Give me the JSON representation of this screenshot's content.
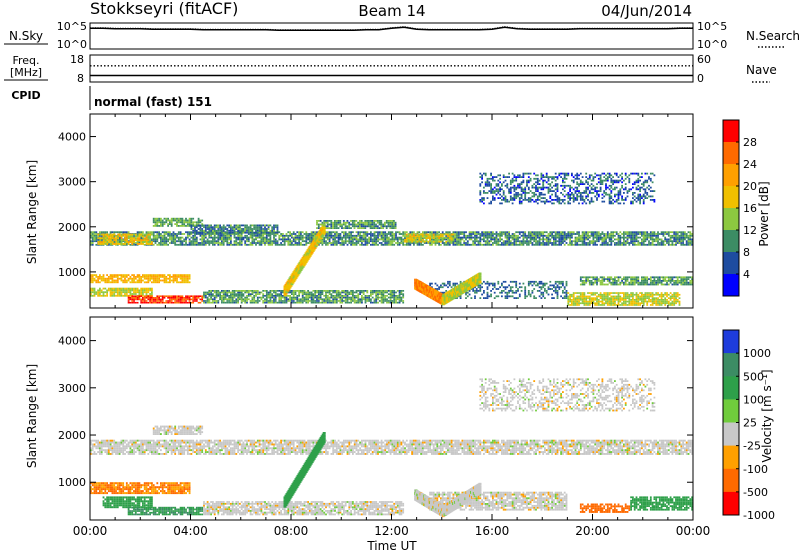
{
  "chart_data": [
    {
      "type": "line",
      "panel": "noise",
      "title": "Stokkseyri (fitACF)",
      "beam_label": "Beam 14",
      "date_label": "04/Jun/2014",
      "left_label": "N.Sky",
      "right_label": "N.Search",
      "left_ticks": [
        "10^5",
        "10^0"
      ],
      "right_ticks": [
        "10^5",
        "10^0"
      ],
      "x": [
        0,
        0.5,
        1,
        1.5,
        2,
        2.5,
        3,
        3.5,
        4,
        4.5,
        5,
        5.5,
        6,
        6.5,
        7,
        7.5,
        8,
        8.5,
        9,
        9.5,
        10,
        10.5,
        11,
        11.5,
        12,
        12.5,
        13,
        13.5,
        14,
        14.5,
        15,
        15.5,
        16,
        16.5,
        17,
        17.5,
        18,
        18.5,
        19,
        19.5,
        20,
        20.5,
        21,
        21.5,
        22,
        22.5,
        23,
        23.5,
        24
      ],
      "sky_log10": [
        4.0,
        4.0,
        3.9,
        3.9,
        3.9,
        3.8,
        3.8,
        3.8,
        3.8,
        3.7,
        3.7,
        3.7,
        3.7,
        3.7,
        3.7,
        3.6,
        3.6,
        3.6,
        3.6,
        3.6,
        3.6,
        3.6,
        3.7,
        3.7,
        4.0,
        4.2,
        3.8,
        3.7,
        3.7,
        3.7,
        3.7,
        3.7,
        3.8,
        4.2,
        3.9,
        3.8,
        3.8,
        3.8,
        3.8,
        3.9,
        3.9,
        3.9,
        3.9,
        3.9,
        3.9,
        3.9,
        3.9,
        4.0,
        4.0
      ],
      "search_log10": [
        4.1,
        4.1,
        4.0,
        4.0,
        4.0,
        3.9,
        3.9,
        3.9,
        3.9,
        3.8,
        3.8,
        3.8,
        3.8,
        3.8,
        3.8,
        3.7,
        3.7,
        3.7,
        3.7,
        3.7,
        3.7,
        3.7,
        3.8,
        3.8,
        4.1,
        4.3,
        3.9,
        3.8,
        3.8,
        3.8,
        3.8,
        3.8,
        3.9,
        4.3,
        4.0,
        3.9,
        3.9,
        3.9,
        3.9,
        4.0,
        4.0,
        4.0,
        4.0,
        4.0,
        4.0,
        4.0,
        4.0,
        4.1,
        4.1
      ]
    },
    {
      "type": "line",
      "panel": "frequency",
      "left_label_1": "Freq.",
      "left_label_2": "[MHz]",
      "left_ticks": [
        "18",
        "8"
      ],
      "right_label": "Nave",
      "right_ticks": [
        "60",
        "0"
      ],
      "x": [
        0,
        24
      ],
      "freq_mhz": [
        10.4,
        10.4
      ],
      "nave": [
        36,
        36
      ]
    },
    {
      "type": "table",
      "panel": "cpid",
      "label": "CPID",
      "mode": "normal (fast) 151"
    },
    {
      "type": "heatmap",
      "panel": "power",
      "ylabel": "Slant Range [km]",
      "xlim": [
        0,
        24
      ],
      "ylim": [
        200,
        4500
      ],
      "yticks": [
        1000,
        2000,
        3000,
        4000
      ],
      "colorbar_label": "Power [dB]",
      "colorbar_ticks": [
        28,
        24,
        20,
        16,
        12,
        8,
        4
      ],
      "colorbar_colors": [
        "#ff0000",
        "#ff6a00",
        "#ffa000",
        "#f0c000",
        "#8cc840",
        "#3c8c64",
        "#1e4ca0",
        "#0000ff"
      ],
      "bands": [
        {
          "t": [
            0,
            24
          ],
          "r": [
            1580,
            1900
          ],
          "value": 8
        },
        {
          "t": [
            0.3,
            2.5
          ],
          "r": [
            1600,
            1850
          ],
          "value": 16
        },
        {
          "t": [
            2.5,
            4.5
          ],
          "r": [
            2000,
            2200
          ],
          "value": 10
        },
        {
          "t": [
            4.0,
            7.5
          ],
          "r": [
            1850,
            2050
          ],
          "value": 7
        },
        {
          "t": [
            9.0,
            12.2
          ],
          "r": [
            1950,
            2150
          ],
          "value": 9
        },
        {
          "t": [
            12.5,
            14.5
          ],
          "r": [
            1650,
            1850
          ],
          "value": 15
        },
        {
          "t": [
            0,
            4.0
          ],
          "r": [
            750,
            950
          ],
          "value": 18
        },
        {
          "t": [
            0,
            2.5
          ],
          "r": [
            450,
            650
          ],
          "value": 14
        },
        {
          "t": [
            1.5,
            4.5
          ],
          "r": [
            300,
            480
          ],
          "value": 26
        },
        {
          "t": [
            4.5,
            12.5
          ],
          "r": [
            300,
            600
          ],
          "value": 9
        },
        {
          "t": [
            13.5,
            19.0
          ],
          "r": [
            400,
            800
          ],
          "value": 6
        },
        {
          "t": [
            19.0,
            23.5
          ],
          "r": [
            250,
            550
          ],
          "value": 14
        },
        {
          "t": [
            19.5,
            24
          ],
          "r": [
            700,
            900
          ],
          "value": 9
        },
        {
          "t": [
            15.5,
            22.5
          ],
          "r": [
            2500,
            3200
          ],
          "value": 5
        }
      ],
      "arcs": [
        {
          "t": [
            7.7,
            9.3
          ],
          "r": [
            550,
            1950
          ],
          "value": 16
        },
        {
          "t": [
            12.9,
            14.0
          ],
          "r": [
            700,
            350
          ],
          "value": 22
        },
        {
          "t": [
            14.0,
            15.5
          ],
          "r": [
            350,
            850
          ],
          "value": 14
        }
      ]
    },
    {
      "type": "heatmap",
      "panel": "velocity",
      "ylabel": "Slant Range [km]",
      "xlabel": "Time UT",
      "xlim": [
        0,
        24
      ],
      "ylim": [
        200,
        4500
      ],
      "xticks": [
        "00:00",
        "04:00",
        "08:00",
        "12:00",
        "16:00",
        "20:00",
        "00:00"
      ],
      "yticks": [
        1000,
        2000,
        3000,
        4000
      ],
      "colorbar_label": "Velocity [m s⁻¹]",
      "colorbar_ticks": [
        "1000",
        "500",
        "100",
        "25",
        "-25",
        "-100",
        "-500",
        "-1000"
      ],
      "colorbar_colors": [
        "#1e3cdc",
        "#3c8c64",
        "#2ea04a",
        "#70cc3c",
        "#c8c8c8",
        "#ffa000",
        "#ff6a00",
        "#ff0000"
      ],
      "bands": [
        {
          "t": [
            0,
            24
          ],
          "r": [
            1580,
            1900
          ],
          "value": 0
        },
        {
          "t": [
            2.5,
            4.5
          ],
          "r": [
            2000,
            2200
          ],
          "value": 0
        },
        {
          "t": [
            0,
            4.0
          ],
          "r": [
            750,
            1000
          ],
          "value": -300
        },
        {
          "t": [
            0.5,
            2.5
          ],
          "r": [
            450,
            700
          ],
          "value": 200
        },
        {
          "t": [
            1.5,
            4.5
          ],
          "r": [
            300,
            480
          ],
          "value": 300
        },
        {
          "t": [
            4.5,
            12.5
          ],
          "r": [
            300,
            600
          ],
          "value": 0
        },
        {
          "t": [
            13.5,
            19.0
          ],
          "r": [
            400,
            800
          ],
          "value": 0
        },
        {
          "t": [
            19.5,
            21.5
          ],
          "r": [
            350,
            550
          ],
          "value": -500
        },
        {
          "t": [
            21.5,
            24
          ],
          "r": [
            400,
            700
          ],
          "value": 150
        },
        {
          "t": [
            15.5,
            22.5
          ],
          "r": [
            2500,
            3200
          ],
          "value": 0
        }
      ],
      "arcs": [
        {
          "t": [
            7.7,
            9.3
          ],
          "r": [
            550,
            1950
          ],
          "value": 200
        },
        {
          "t": [
            12.9,
            14.0
          ],
          "r": [
            700,
            350
          ],
          "value": 0
        },
        {
          "t": [
            14.0,
            15.5
          ],
          "r": [
            350,
            850
          ],
          "value": 0
        }
      ]
    }
  ]
}
